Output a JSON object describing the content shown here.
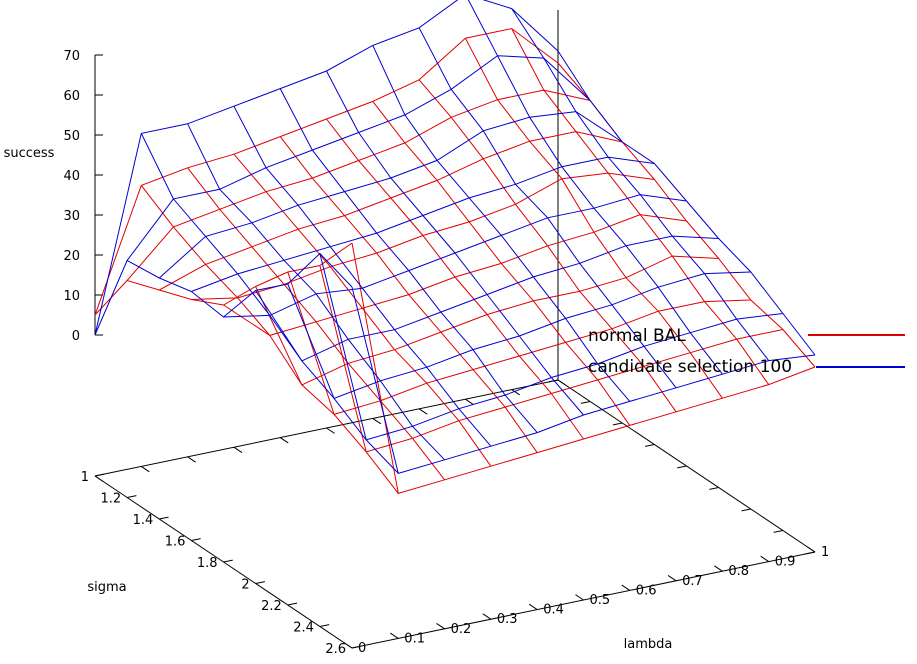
{
  "chart_data": {
    "type": "surface3d",
    "zlabel": "success",
    "xlabel": "lambda",
    "ylabel": "sigma",
    "zlim": [
      0,
      70
    ],
    "z_ticks": [
      "0",
      "10",
      "20",
      "30",
      "40",
      "50",
      "60",
      "70"
    ],
    "lambda_ticks": [
      "0",
      "0.1",
      "0.2",
      "0.3",
      "0.4",
      "0.5",
      "0.6",
      "0.7",
      "0.8",
      "0.9",
      "1"
    ],
    "sigma_ticks": [
      "1",
      "1.2",
      "1.4",
      "1.6",
      "1.8",
      "2",
      "2.2",
      "2.4",
      "2.6"
    ],
    "lambda": [
      0.0,
      0.1,
      0.2,
      0.3,
      0.4,
      0.5,
      0.6,
      0.7,
      0.8,
      0.9,
      1.0
    ],
    "sigma": [
      1.0,
      1.2,
      1.4,
      1.6,
      1.8,
      2.0,
      2.2,
      2.4,
      2.6
    ],
    "series": [
      {
        "name": "normal BAL",
        "color": "#e00000",
        "z": [
          [
            5,
            35,
            37,
            38,
            40,
            42,
            44,
            47,
            55,
            55,
            44
          ],
          [
            19,
            30,
            32,
            34,
            35,
            37,
            39,
            43,
            45,
            45,
            40
          ],
          [
            22,
            26,
            28,
            30,
            31,
            33,
            35,
            38,
            40,
            40,
            35
          ],
          [
            25,
            23,
            24,
            26,
            27,
            29,
            30,
            32,
            36,
            35,
            31
          ],
          [
            29,
            19,
            20,
            21,
            22,
            24,
            25,
            27,
            28,
            30,
            26
          ],
          [
            39,
            12,
            15,
            16,
            18,
            20,
            21,
            21,
            22,
            25,
            22
          ],
          [
            48,
            10,
            11,
            13,
            14,
            15,
            16,
            17,
            19,
            19,
            17
          ],
          [
            55,
            6,
            7,
            9,
            10,
            11,
            12,
            13,
            14,
            15,
            15
          ],
          [
            66,
            1,
            2,
            3,
            4,
            5,
            6,
            7,
            8,
            9,
            11
          ]
        ]
      },
      {
        "name": "candidate selection 100",
        "color": "#0000d0",
        "z": [
          [
            0,
            48,
            48,
            50,
            52,
            54,
            58,
            60,
            66,
            60,
            47
          ],
          [
            24,
            37,
            37,
            40,
            42,
            44,
            46,
            50,
            56,
            53,
            40
          ],
          [
            25,
            33,
            34,
            36,
            37,
            38,
            40,
            45,
            46,
            45,
            35
          ],
          [
            27,
            29,
            30,
            31,
            32,
            34,
            36,
            37,
            39,
            39,
            35
          ],
          [
            26,
            24,
            27,
            26,
            28,
            30,
            32,
            34,
            34,
            35,
            31
          ],
          [
            38,
            18,
            21,
            21,
            23,
            25,
            27,
            28,
            30,
            30,
            27
          ],
          [
            45,
            14,
            16,
            17,
            19,
            20,
            22,
            23,
            25,
            26,
            24
          ],
          [
            58,
            9,
            10,
            12,
            13,
            15,
            16,
            18,
            19,
            20,
            19
          ],
          [
            55,
            6,
            7,
            8,
            9,
            11,
            12,
            13,
            14,
            15,
            14
          ]
        ]
      }
    ]
  }
}
